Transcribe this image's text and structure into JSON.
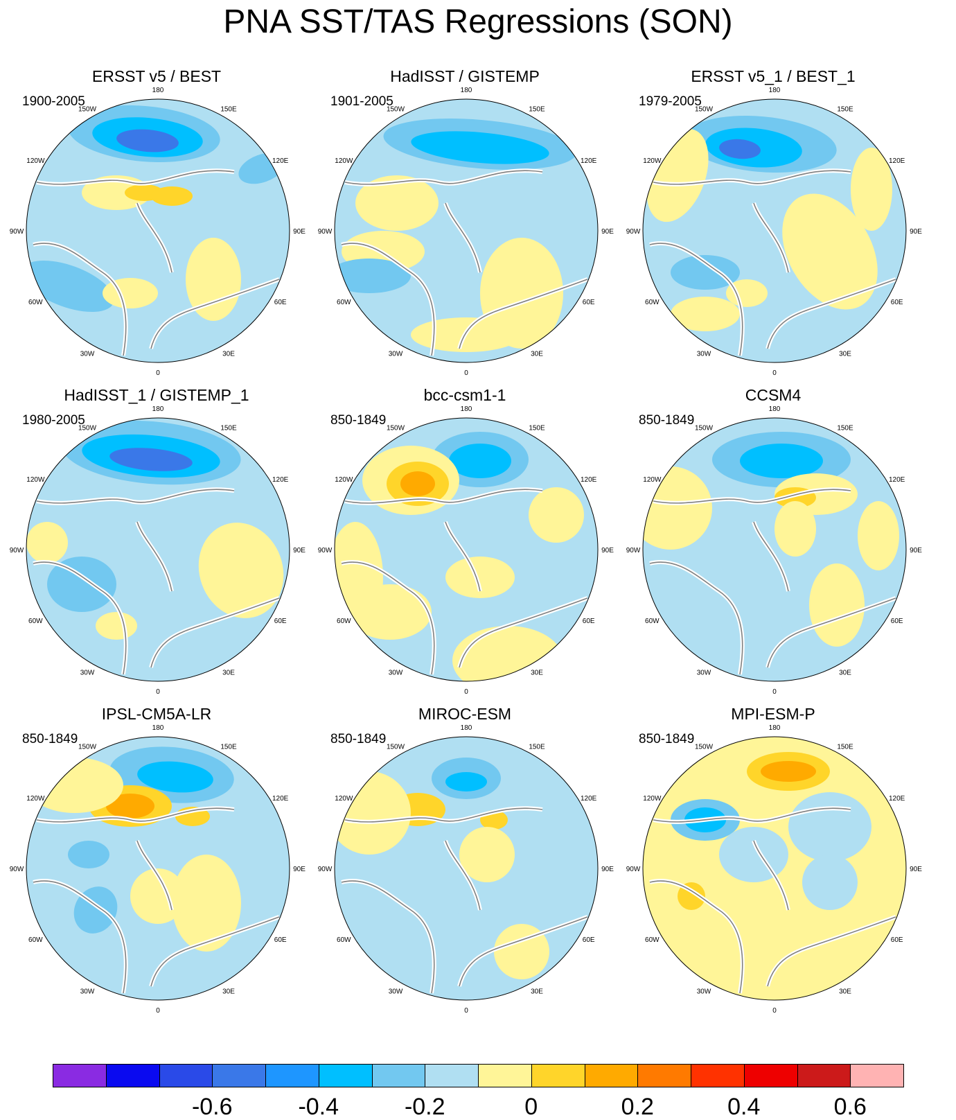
{
  "title": "PNA SST/TAS Regressions (SON)",
  "longitude_labels": [
    "180",
    "150E",
    "120E",
    "90E",
    "60E",
    "30E",
    "0",
    "30W",
    "60W",
    "90W",
    "120W",
    "150W"
  ],
  "panels": [
    {
      "title": "ERSST v5 / BEST",
      "period": "1900-2005"
    },
    {
      "title": "HadISST / GISTEMP",
      "period": "1901-2005"
    },
    {
      "title": "ERSST v5_1 / BEST_1",
      "period": "1979-2005"
    },
    {
      "title": "HadISST_1 / GISTEMP_1",
      "period": "1980-2005"
    },
    {
      "title": "bcc-csm1-1",
      "period": "850-1849"
    },
    {
      "title": "CCSM4",
      "period": "850-1849"
    },
    {
      "title": "IPSL-CM5A-LR",
      "period": "850-1849"
    },
    {
      "title": "MIROC-ESM",
      "period": "850-1849"
    },
    {
      "title": "MPI-ESM-P",
      "period": "850-1849"
    }
  ],
  "colorbar": {
    "colors": [
      "#8a2be2",
      "#0a0af0",
      "#2a4ae8",
      "#3a78e8",
      "#1e96ff",
      "#00bfff",
      "#72c8f0",
      "#b0dff2",
      "#fff598",
      "#ffd52a",
      "#ffaa00",
      "#ff7a00",
      "#ff3200",
      "#ee0000",
      "#cc1a1a",
      "#ffb3b3"
    ],
    "labels": [
      "-0.6",
      "-0.4",
      "-0.2",
      "0",
      "0.2",
      "0.4",
      "0.6"
    ]
  },
  "colors": {
    "coast": "#808080",
    "land_boundary": "#ffffff",
    "background": "#ffffff"
  }
}
